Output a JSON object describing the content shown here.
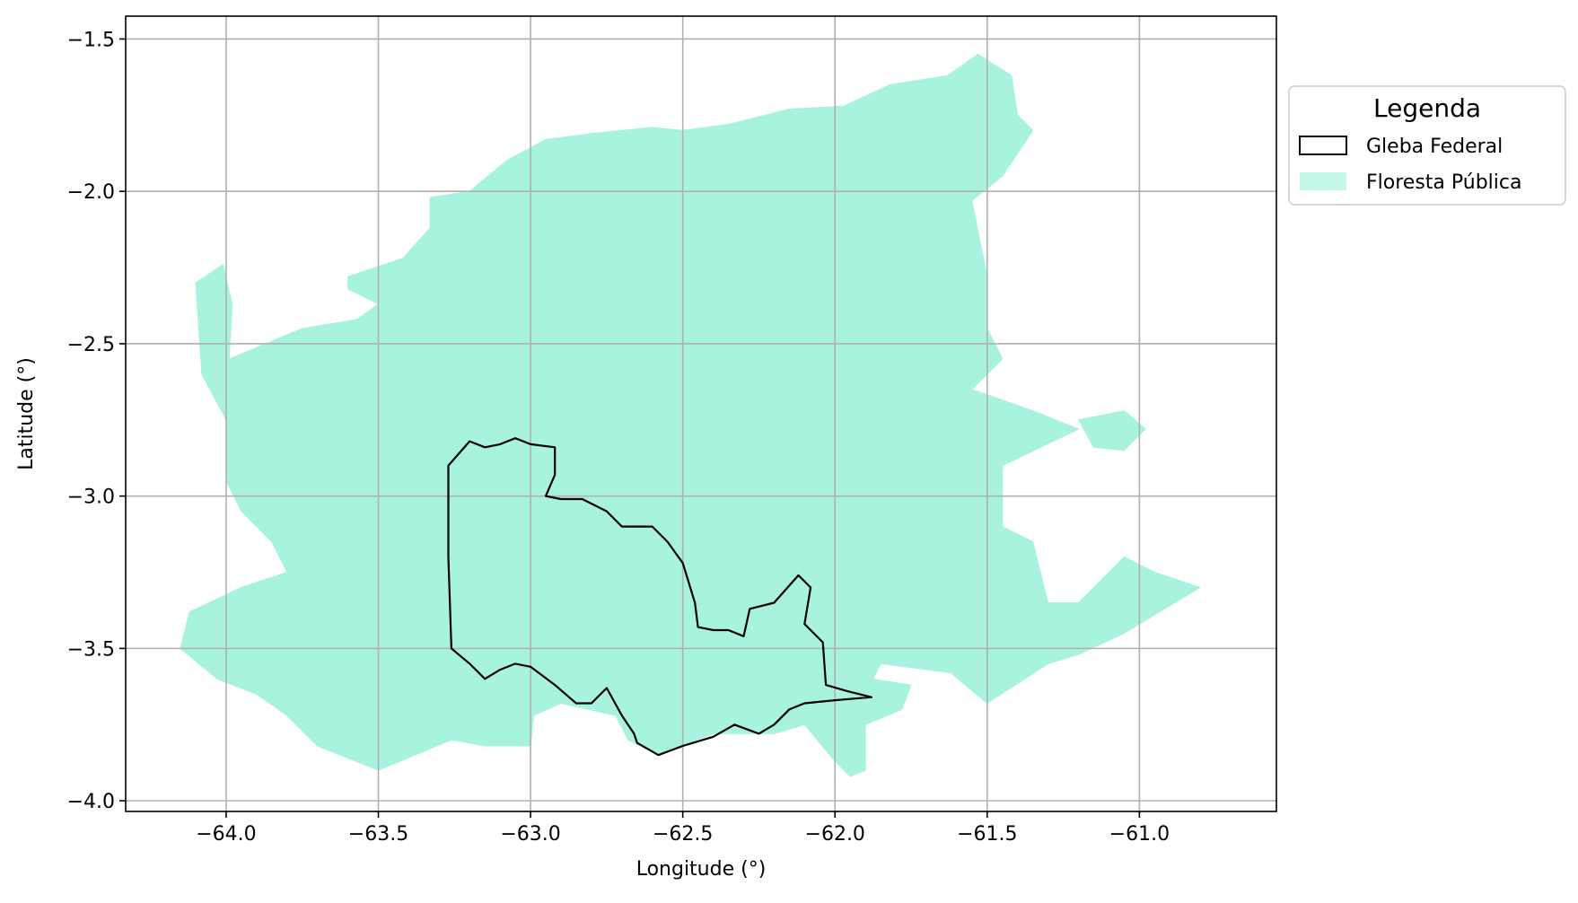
{
  "chart_data": {
    "type": "map",
    "xlabel": "Longitude (°)",
    "ylabel": "Latitude (°)",
    "xlim": [
      -64.33,
      -60.55
    ],
    "ylim": [
      -4.035,
      -1.425
    ],
    "xticks": [
      -64.0,
      -63.5,
      -63.0,
      -62.5,
      -62.0,
      -61.5,
      -61.0
    ],
    "xtick_labels": [
      "−64.0",
      "−63.5",
      "−63.0",
      "−62.5",
      "−62.0",
      "−61.5",
      "−61.0"
    ],
    "yticks": [
      -1.5,
      -2.0,
      -2.5,
      -3.0,
      -3.5,
      -4.0
    ],
    "ytick_labels": [
      "−1.5",
      "−2.0",
      "−2.5",
      "−3.0",
      "−3.5",
      "−4.0"
    ],
    "grid": true,
    "legend": {
      "title": "Legenda",
      "placement": "outside-upper-right",
      "entries": [
        {
          "label": "Gleba Federal",
          "style": "outline",
          "color": "#000000"
        },
        {
          "label": "Floresta Pública",
          "style": "fill",
          "color": "#a8f3df"
        }
      ]
    },
    "layers": [
      {
        "name": "Floresta Pública",
        "kind": "polygon",
        "fill": "#a8f3df",
        "polygons": [
          [
            [
              -64.01,
              -2.24
            ],
            [
              -63.98,
              -2.37
            ],
            [
              -63.99,
              -2.55
            ],
            [
              -63.75,
              -2.45
            ],
            [
              -63.57,
              -2.42
            ],
            [
              -63.5,
              -2.37
            ],
            [
              -63.6,
              -2.32
            ],
            [
              -63.6,
              -2.28
            ],
            [
              -63.42,
              -2.22
            ],
            [
              -63.33,
              -2.12
            ],
            [
              -63.33,
              -2.02
            ],
            [
              -63.2,
              -2.0
            ],
            [
              -63.08,
              -1.9
            ],
            [
              -62.95,
              -1.83
            ],
            [
              -62.8,
              -1.81
            ],
            [
              -62.6,
              -1.79
            ],
            [
              -62.5,
              -1.8
            ],
            [
              -62.35,
              -1.78
            ],
            [
              -62.15,
              -1.73
            ],
            [
              -61.97,
              -1.72
            ],
            [
              -61.82,
              -1.65
            ],
            [
              -61.63,
              -1.62
            ],
            [
              -61.53,
              -1.55
            ],
            [
              -61.42,
              -1.62
            ],
            [
              -61.4,
              -1.75
            ],
            [
              -61.35,
              -1.8
            ],
            [
              -61.45,
              -1.95
            ],
            [
              -61.55,
              -2.03
            ],
            [
              -61.5,
              -2.28
            ],
            [
              -61.5,
              -2.45
            ],
            [
              -61.45,
              -2.55
            ],
            [
              -61.55,
              -2.65
            ],
            [
              -61.35,
              -2.72
            ],
            [
              -61.2,
              -2.78
            ],
            [
              -61.45,
              -2.9
            ],
            [
              -61.45,
              -3.1
            ],
            [
              -61.35,
              -3.15
            ],
            [
              -61.3,
              -3.35
            ],
            [
              -61.2,
              -3.35
            ],
            [
              -61.05,
              -3.2
            ],
            [
              -60.95,
              -3.25
            ],
            [
              -60.8,
              -3.3
            ],
            [
              -61.05,
              -3.45
            ],
            [
              -61.2,
              -3.52
            ],
            [
              -61.3,
              -3.55
            ],
            [
              -61.5,
              -3.68
            ],
            [
              -61.62,
              -3.58
            ],
            [
              -61.85,
              -3.55
            ],
            [
              -61.9,
              -3.65
            ],
            [
              -61.9,
              -3.9
            ],
            [
              -61.95,
              -3.92
            ],
            [
              -62.0,
              -3.87
            ],
            [
              -62.1,
              -3.75
            ],
            [
              -62.2,
              -3.78
            ],
            [
              -62.4,
              -3.78
            ],
            [
              -62.58,
              -3.85
            ],
            [
              -62.68,
              -3.8
            ],
            [
              -62.72,
              -3.72
            ],
            [
              -62.9,
              -3.68
            ],
            [
              -62.99,
              -3.72
            ],
            [
              -63.0,
              -3.82
            ],
            [
              -63.15,
              -3.82
            ],
            [
              -63.26,
              -3.8
            ],
            [
              -63.38,
              -3.85
            ],
            [
              -63.5,
              -3.9
            ],
            [
              -63.7,
              -3.82
            ],
            [
              -63.8,
              -3.72
            ],
            [
              -63.9,
              -3.65
            ],
            [
              -64.03,
              -3.6
            ],
            [
              -64.15,
              -3.5
            ],
            [
              -64.12,
              -3.38
            ],
            [
              -63.95,
              -3.3
            ],
            [
              -63.8,
              -3.25
            ],
            [
              -63.85,
              -3.15
            ],
            [
              -63.95,
              -3.05
            ],
            [
              -64.0,
              -2.95
            ],
            [
              -64.0,
              -2.75
            ],
            [
              -64.08,
              -2.6
            ],
            [
              -64.1,
              -2.3
            ]
          ],
          [
            [
              -61.2,
              -2.75
            ],
            [
              -61.05,
              -2.72
            ],
            [
              -60.98,
              -2.78
            ],
            [
              -61.05,
              -2.85
            ],
            [
              -61.15,
              -2.84
            ]
          ],
          [
            [
              -62.05,
              -3.53
            ],
            [
              -61.88,
              -3.6
            ],
            [
              -61.75,
              -3.62
            ],
            [
              -61.78,
              -3.7
            ],
            [
              -61.9,
              -3.75
            ],
            [
              -62.02,
              -3.68
            ]
          ]
        ]
      },
      {
        "name": "Gleba Federal",
        "kind": "outline",
        "stroke": "#000000",
        "polygon": [
          [
            -63.27,
            -2.9
          ],
          [
            -63.2,
            -2.82
          ],
          [
            -63.15,
            -2.84
          ],
          [
            -63.1,
            -2.83
          ],
          [
            -63.05,
            -2.81
          ],
          [
            -63.0,
            -2.83
          ],
          [
            -62.92,
            -2.84
          ],
          [
            -62.92,
            -2.93
          ],
          [
            -62.95,
            -3.0
          ],
          [
            -62.9,
            -3.01
          ],
          [
            -62.83,
            -3.01
          ],
          [
            -62.75,
            -3.05
          ],
          [
            -62.7,
            -3.1
          ],
          [
            -62.6,
            -3.1
          ],
          [
            -62.55,
            -3.15
          ],
          [
            -62.5,
            -3.22
          ],
          [
            -62.46,
            -3.35
          ],
          [
            -62.45,
            -3.43
          ],
          [
            -62.4,
            -3.44
          ],
          [
            -62.35,
            -3.44
          ],
          [
            -62.3,
            -3.46
          ],
          [
            -62.28,
            -3.37
          ],
          [
            -62.2,
            -3.35
          ],
          [
            -62.12,
            -3.26
          ],
          [
            -62.08,
            -3.3
          ],
          [
            -62.1,
            -3.42
          ],
          [
            -62.04,
            -3.48
          ],
          [
            -62.03,
            -3.62
          ],
          [
            -61.96,
            -3.64
          ],
          [
            -61.88,
            -3.66
          ],
          [
            -62.0,
            -3.67
          ],
          [
            -62.1,
            -3.68
          ],
          [
            -62.15,
            -3.7
          ],
          [
            -62.2,
            -3.75
          ],
          [
            -62.25,
            -3.78
          ],
          [
            -62.33,
            -3.75
          ],
          [
            -62.4,
            -3.79
          ],
          [
            -62.5,
            -3.82
          ],
          [
            -62.58,
            -3.85
          ],
          [
            -62.65,
            -3.81
          ],
          [
            -62.66,
            -3.78
          ],
          [
            -62.7,
            -3.72
          ],
          [
            -62.75,
            -3.63
          ],
          [
            -62.8,
            -3.68
          ],
          [
            -62.85,
            -3.68
          ],
          [
            -62.92,
            -3.62
          ],
          [
            -63.0,
            -3.56
          ],
          [
            -63.05,
            -3.55
          ],
          [
            -63.1,
            -3.57
          ],
          [
            -63.15,
            -3.6
          ],
          [
            -63.2,
            -3.55
          ],
          [
            -63.26,
            -3.5
          ],
          [
            -63.27,
            -3.2
          ]
        ]
      }
    ]
  }
}
